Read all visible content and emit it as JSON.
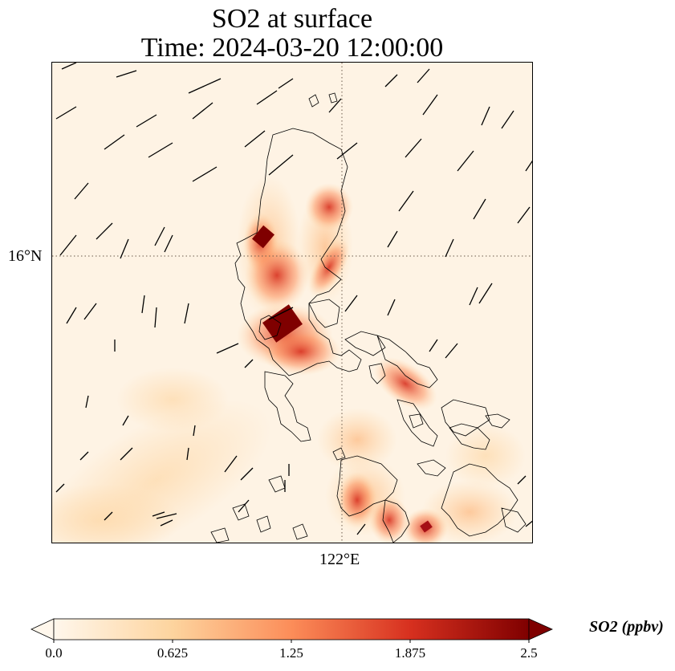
{
  "title_line1": "SO2 at surface",
  "title_line2": "Time: 2024-03-20 12:00:00",
  "map": {
    "lat_label": "16°N",
    "lon_label": "122°E",
    "gridline_style": "dotted",
    "background_color": "#fef3e4",
    "coastline_color": "#000000"
  },
  "colorbar": {
    "label": "SO2 (ppbv)",
    "ticks": [
      "0.0",
      "0.625",
      "1.25",
      "1.875",
      "2.5"
    ],
    "min": 0.0,
    "max": 2.5,
    "colormap": "OrRd",
    "colors": [
      "#fff7ec",
      "#fdd49e",
      "#fc8d59",
      "#d7301f",
      "#7f0000"
    ],
    "extend": "both"
  }
}
